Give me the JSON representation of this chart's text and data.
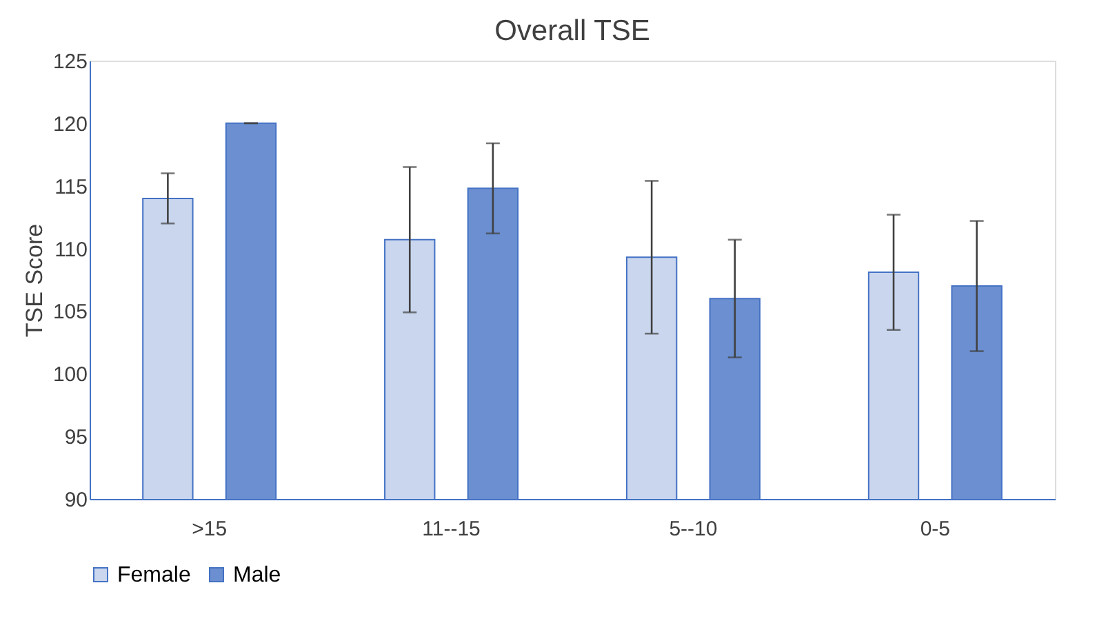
{
  "chart_data": {
    "type": "bar",
    "title": "Overall TSE",
    "ylabel": "TSE Score",
    "categories": [
      ">15",
      "11--15",
      "5--10",
      "0-5"
    ],
    "series": [
      {
        "name": "Female",
        "color": "#c9d6ee",
        "values": [
          114,
          110.7,
          109.3,
          108.1
        ],
        "errors": [
          2,
          5.8,
          6.1,
          4.6
        ]
      },
      {
        "name": "Male",
        "color": "#6b8fd0",
        "values": [
          120,
          114.8,
          106,
          107
        ],
        "errors": [
          0,
          3.6,
          4.7,
          5.2
        ]
      }
    ],
    "ylim": [
      90,
      125
    ],
    "yticks": [
      90,
      95,
      100,
      105,
      110,
      115,
      120,
      125
    ],
    "grid": false,
    "legend": "bottom"
  }
}
